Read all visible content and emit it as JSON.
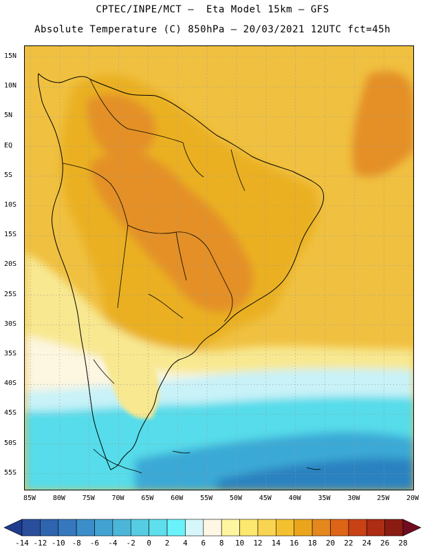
{
  "header": {
    "line1": "CPTEC/INPE/MCT —  Eta Model 15km — GFS",
    "line2": "Absolute Temperature (C) 850hPa — 20/03/2021 12UTC fct=45h"
  },
  "map": {
    "lat_labels": [
      "15N",
      "10N",
      "5N",
      "EQ",
      "5S",
      "10S",
      "15S",
      "20S",
      "25S",
      "30S",
      "35S",
      "40S",
      "45S",
      "50S",
      "55S"
    ],
    "lon_labels": [
      "85W",
      "80W",
      "75W",
      "70W",
      "65W",
      "60W",
      "55W",
      "50W",
      "45W",
      "40W",
      "35W",
      "30W",
      "25W",
      "20W"
    ],
    "colors": {
      "ocean_warm": "#f0c040",
      "land_warm": "#eab020",
      "hot": "#e49028",
      "yellow": "#f8e890",
      "cream": "#fdf6e0",
      "cyan_light": "#c8f2f8",
      "cyan": "#56dcea",
      "blue_mid": "#3aa9d6",
      "blue_dark": "#2c82c0"
    }
  },
  "colorbar": {
    "labels": [
      "-14",
      "-12",
      "-10",
      "-8",
      "-6",
      "-4",
      "-2",
      "0",
      "2",
      "4",
      "6",
      "8",
      "10",
      "12",
      "14",
      "16",
      "18",
      "20",
      "22",
      "24",
      "26",
      "28"
    ],
    "colors": [
      "#1e3c8c",
      "#2a4e9c",
      "#2f64ae",
      "#3578be",
      "#3b8ec9",
      "#42a2d1",
      "#4cb6d9",
      "#56cce3",
      "#5fdeec",
      "#6af2fa",
      "#d6f6fa",
      "#fff6e4",
      "#fff5a0",
      "#fce86e",
      "#f8d450",
      "#f3c030",
      "#eaa51c",
      "#e4881e",
      "#de6418",
      "#c84216",
      "#ac2c14",
      "#8a1c14",
      "#700c1e"
    ]
  }
}
